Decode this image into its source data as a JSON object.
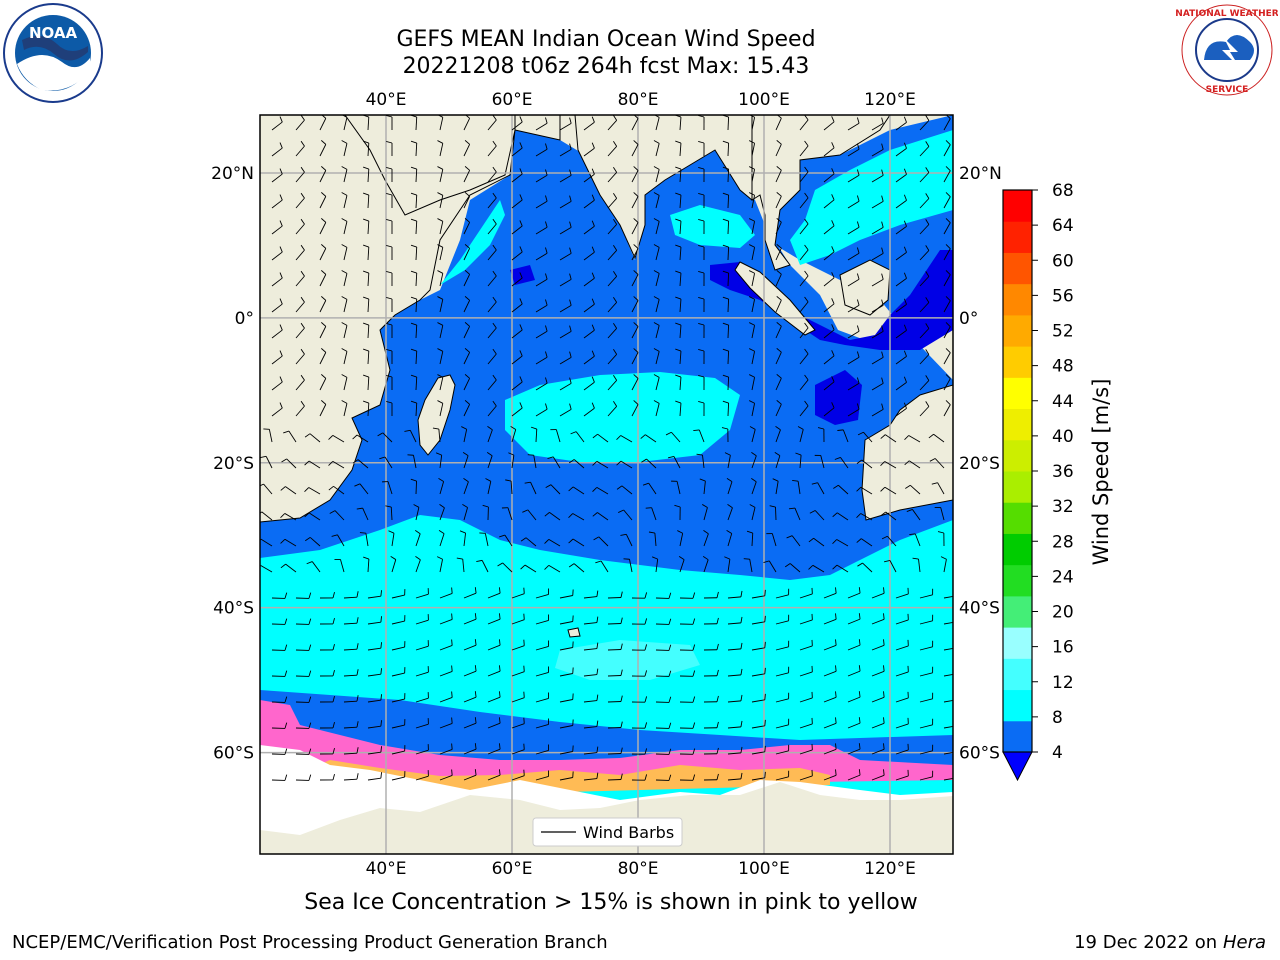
{
  "title": {
    "line1": "GEFS MEAN Indian Ocean Wind Speed",
    "line2": "20221208 t06z 264h fcst   Max: 15.43"
  },
  "logos": {
    "noaa": {
      "text": "NOAA",
      "ring_text": "NATIONAL OCEANIC AND ATMOSPHERIC ADMINISTRATION · U.S. DEPARTMENT OF COMMERCE"
    },
    "nws": {
      "ring_text": "NATIONAL WEATHER SERVICE"
    }
  },
  "map": {
    "lon_range": [
      20,
      130
    ],
    "lat_range": [
      -74,
      28
    ],
    "grid": true,
    "lon_ticks": [
      {
        "value": 40,
        "label": "40°E"
      },
      {
        "value": 60,
        "label": "60°E"
      },
      {
        "value": 80,
        "label": "80°E"
      },
      {
        "value": 100,
        "label": "100°E"
      },
      {
        "value": 120,
        "label": "120°E"
      }
    ],
    "lat_ticks": [
      {
        "value": 20,
        "label": "20°N"
      },
      {
        "value": 0,
        "label": "0°"
      },
      {
        "value": -20,
        "label": "20°S"
      },
      {
        "value": -40,
        "label": "40°S"
      },
      {
        "value": -60,
        "label": "60°S"
      }
    ],
    "legend": {
      "label": "Wind Barbs",
      "placement": "bottom-center"
    },
    "colors": {
      "land": "#eeeddc",
      "ocean_4_8": "#0a6cf4",
      "ocean_8_12": "#00ffff",
      "ocean_12_16": "#44ffff",
      "ocean_below_4": "#0000e6",
      "sea_ice": "#ff66cc"
    }
  },
  "colorbar": {
    "label": "Wind Speed [m/s]",
    "extend": "min",
    "ticks": [
      4,
      8,
      12,
      16,
      20,
      24,
      28,
      32,
      36,
      40,
      44,
      48,
      52,
      56,
      60,
      64,
      68
    ],
    "bins": [
      "#0a6cf4",
      "#00ffff",
      "#44ffff",
      "#99ffff",
      "#44ee77",
      "#22dd22",
      "#00cc00",
      "#55dd00",
      "#aaee00",
      "#ccee00",
      "#eeee00",
      "#ffff00",
      "#ffcc00",
      "#ffaa00",
      "#ff8800",
      "#ff5500",
      "#ff2200",
      "#ff0000"
    ],
    "under_color": "#0000ff"
  },
  "caption": "Sea Ice Concentration > 15% is shown in pink to yellow",
  "footer": {
    "left": "NCEP/EMC/Verification Post Processing Product Generation Branch",
    "right_date": "19 Dec 2022 on",
    "right_host": "Hera"
  }
}
